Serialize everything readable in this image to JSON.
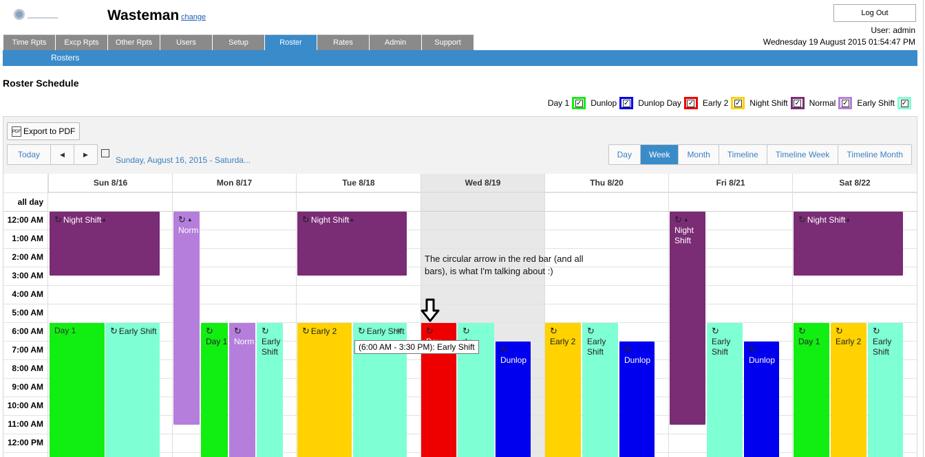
{
  "header": {
    "app_title": "Wasteman",
    "change_link": "change",
    "logout": "Log Out",
    "user": "User: admin",
    "datetime": "Wednesday 19 August 2015 01:54:47 PM"
  },
  "nav": {
    "tabs": [
      "Time Rpts",
      "Excp Rpts",
      "Other Rpts",
      "Users",
      "Setup",
      "Roster",
      "Rates",
      "Admin",
      "Support"
    ],
    "active": "Roster",
    "sub_item": "Rosters"
  },
  "page_title": "Roster Schedule",
  "legend": [
    {
      "label": "Day 1",
      "color": "#11ee11"
    },
    {
      "label": "Dunlop",
      "color": "#0000ee"
    },
    {
      "label": "Dunlop Day",
      "color": "#ee0000"
    },
    {
      "label": "Early 2",
      "color": "#ffd200"
    },
    {
      "label": "Night Shift",
      "color": "#7a2c75"
    },
    {
      "label": "Normal",
      "color": "#b57edc"
    },
    {
      "label": "Early Shift",
      "color": "#7fffd4"
    }
  ],
  "toolbar": {
    "export": "Export to PDF",
    "today": "Today",
    "prev": "◀",
    "next": "▶",
    "date_range": "Sunday, August 16, 2015 - Saturda...",
    "views": [
      "Day",
      "Week",
      "Month",
      "Timeline",
      "Timeline Week",
      "Timeline Month"
    ],
    "active_view": "Week"
  },
  "calendar": {
    "days": [
      "Sun 8/16",
      "Mon 8/17",
      "Tue 8/18",
      "Wed 8/19",
      "Thu 8/20",
      "Fri 8/21",
      "Sat 8/22"
    ],
    "allday_label": "all day",
    "times": [
      "12:00 AM",
      "1:00 AM",
      "2:00 AM",
      "3:00 AM",
      "4:00 AM",
      "5:00 AM",
      "6:00 AM",
      "7:00 AM",
      "8:00 AM",
      "9:00 AM",
      "10:00 AM",
      "11:00 AM",
      "12:00 PM"
    ]
  },
  "events": {
    "night_shift": "Night Shift",
    "normal_short": "Norm",
    "day1": "Day 1",
    "early_shift": "Early Shift",
    "early2": "Early 2",
    "dunlop": "Dunlop",
    "day": "Day",
    "early_trunc": "rly",
    "close": "×"
  },
  "tooltip": "(6:00 AM - 3:30 PM): Early Shift",
  "annotation": "The circular arrow in the red bar (and all bars), is what I'm talking about :)"
}
